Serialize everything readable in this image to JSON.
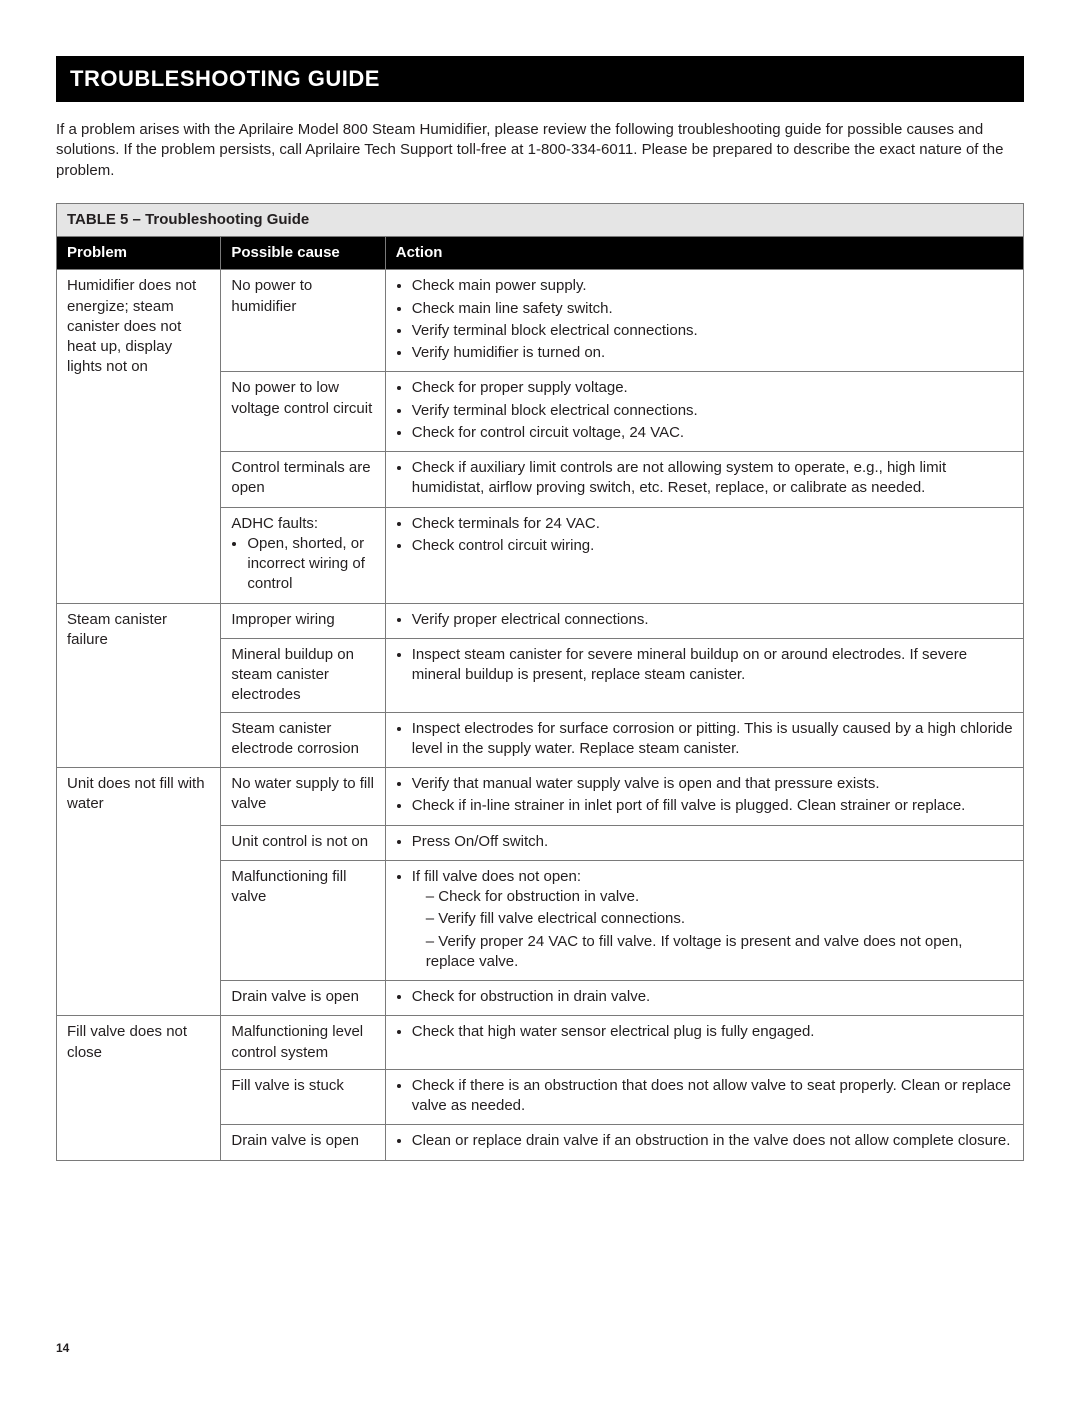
{
  "title": "TROUBLESHOOTING GUIDE",
  "intro": "If a problem arises with the Aprilaire Model 800 Steam Humidifier, please review the following troubleshooting guide for possible causes and solutions. If the problem persists, call Aprilaire Tech Support toll-free at 1-800-334-6011. Please be prepared to describe the exact nature of the problem.",
  "table_caption": "TABLE 5 – Troubleshooting Guide",
  "columns": {
    "problem": "Problem",
    "cause": "Possible cause",
    "action": "Action"
  },
  "page_number": "14",
  "problems": [
    {
      "problem": "Humidifier does not energize; steam canister does not heat up, display lights not on",
      "causes": [
        {
          "cause_plain": "No power to humidifier",
          "actions": [
            "Check main power supply.",
            "Check main line safety switch.",
            "Verify terminal block electrical connections.",
            "Verify humidifier is turned on."
          ]
        },
        {
          "cause_plain": "No power to low voltage control circuit",
          "actions": [
            "Check for proper supply voltage.",
            "Verify terminal block electrical connections.",
            "Check for control circuit voltage, 24 VAC."
          ]
        },
        {
          "cause_plain": "Control terminals are open",
          "actions": [
            "Check if auxiliary limit controls are not allowing system to operate, e.g., high limit humidistat, airflow proving switch, etc. Reset, replace, or calibrate as needed."
          ]
        },
        {
          "cause_lead": "ADHC faults:",
          "cause_bullets": [
            "Open, shorted, or incorrect wiring of control"
          ],
          "actions": [
            "Check terminals for 24 VAC.",
            "Check control circuit wiring."
          ]
        }
      ]
    },
    {
      "problem": "Steam canister failure",
      "causes": [
        {
          "cause_plain": "Improper wiring",
          "actions": [
            "Verify proper electrical connections."
          ]
        },
        {
          "cause_plain": "Mineral buildup on steam canister electrodes",
          "actions": [
            "Inspect steam canister for severe mineral buildup on or around electrodes. If severe mineral buildup is present, replace steam canister."
          ]
        },
        {
          "cause_plain": "Steam canister electrode corrosion",
          "actions": [
            "Inspect electrodes for surface corrosion or pitting. This is usually caused by a high chloride level in the supply water. Replace steam canister."
          ]
        }
      ]
    },
    {
      "problem": "Unit does not fill with water",
      "causes": [
        {
          "cause_plain": "No water supply to fill valve",
          "actions": [
            "Verify that manual water supply valve is open and that pressure exists.",
            "Check if in-line strainer in inlet port of fill valve is plugged. Clean strainer or replace."
          ]
        },
        {
          "cause_plain": "Unit control is not on",
          "actions": [
            "Press On/Off switch."
          ]
        },
        {
          "cause_plain": "Malfunctioning fill valve",
          "action_lead": "If fill valve does not open:",
          "action_sub": [
            "Check for obstruction in valve.",
            "Verify fill valve electrical connections.",
            "Verify proper 24 VAC to fill valve. If voltage is present and valve does not open, replace valve."
          ]
        },
        {
          "cause_plain": "Drain valve is open",
          "actions": [
            "Check for obstruction in drain valve."
          ]
        }
      ]
    },
    {
      "problem": "Fill valve does not close",
      "causes": [
        {
          "cause_plain": "Malfunctioning level control system",
          "actions": [
            "Check that high water sensor electrical plug is fully engaged."
          ]
        },
        {
          "cause_plain": "Fill valve is stuck",
          "actions": [
            "Check if there is an obstruction that does not allow valve to seat properly. Clean or replace valve as needed."
          ]
        },
        {
          "cause_plain": "Drain valve is open",
          "actions": [
            "Clean or replace drain valve if an obstruction in the valve does not allow complete closure."
          ]
        }
      ]
    }
  ]
}
